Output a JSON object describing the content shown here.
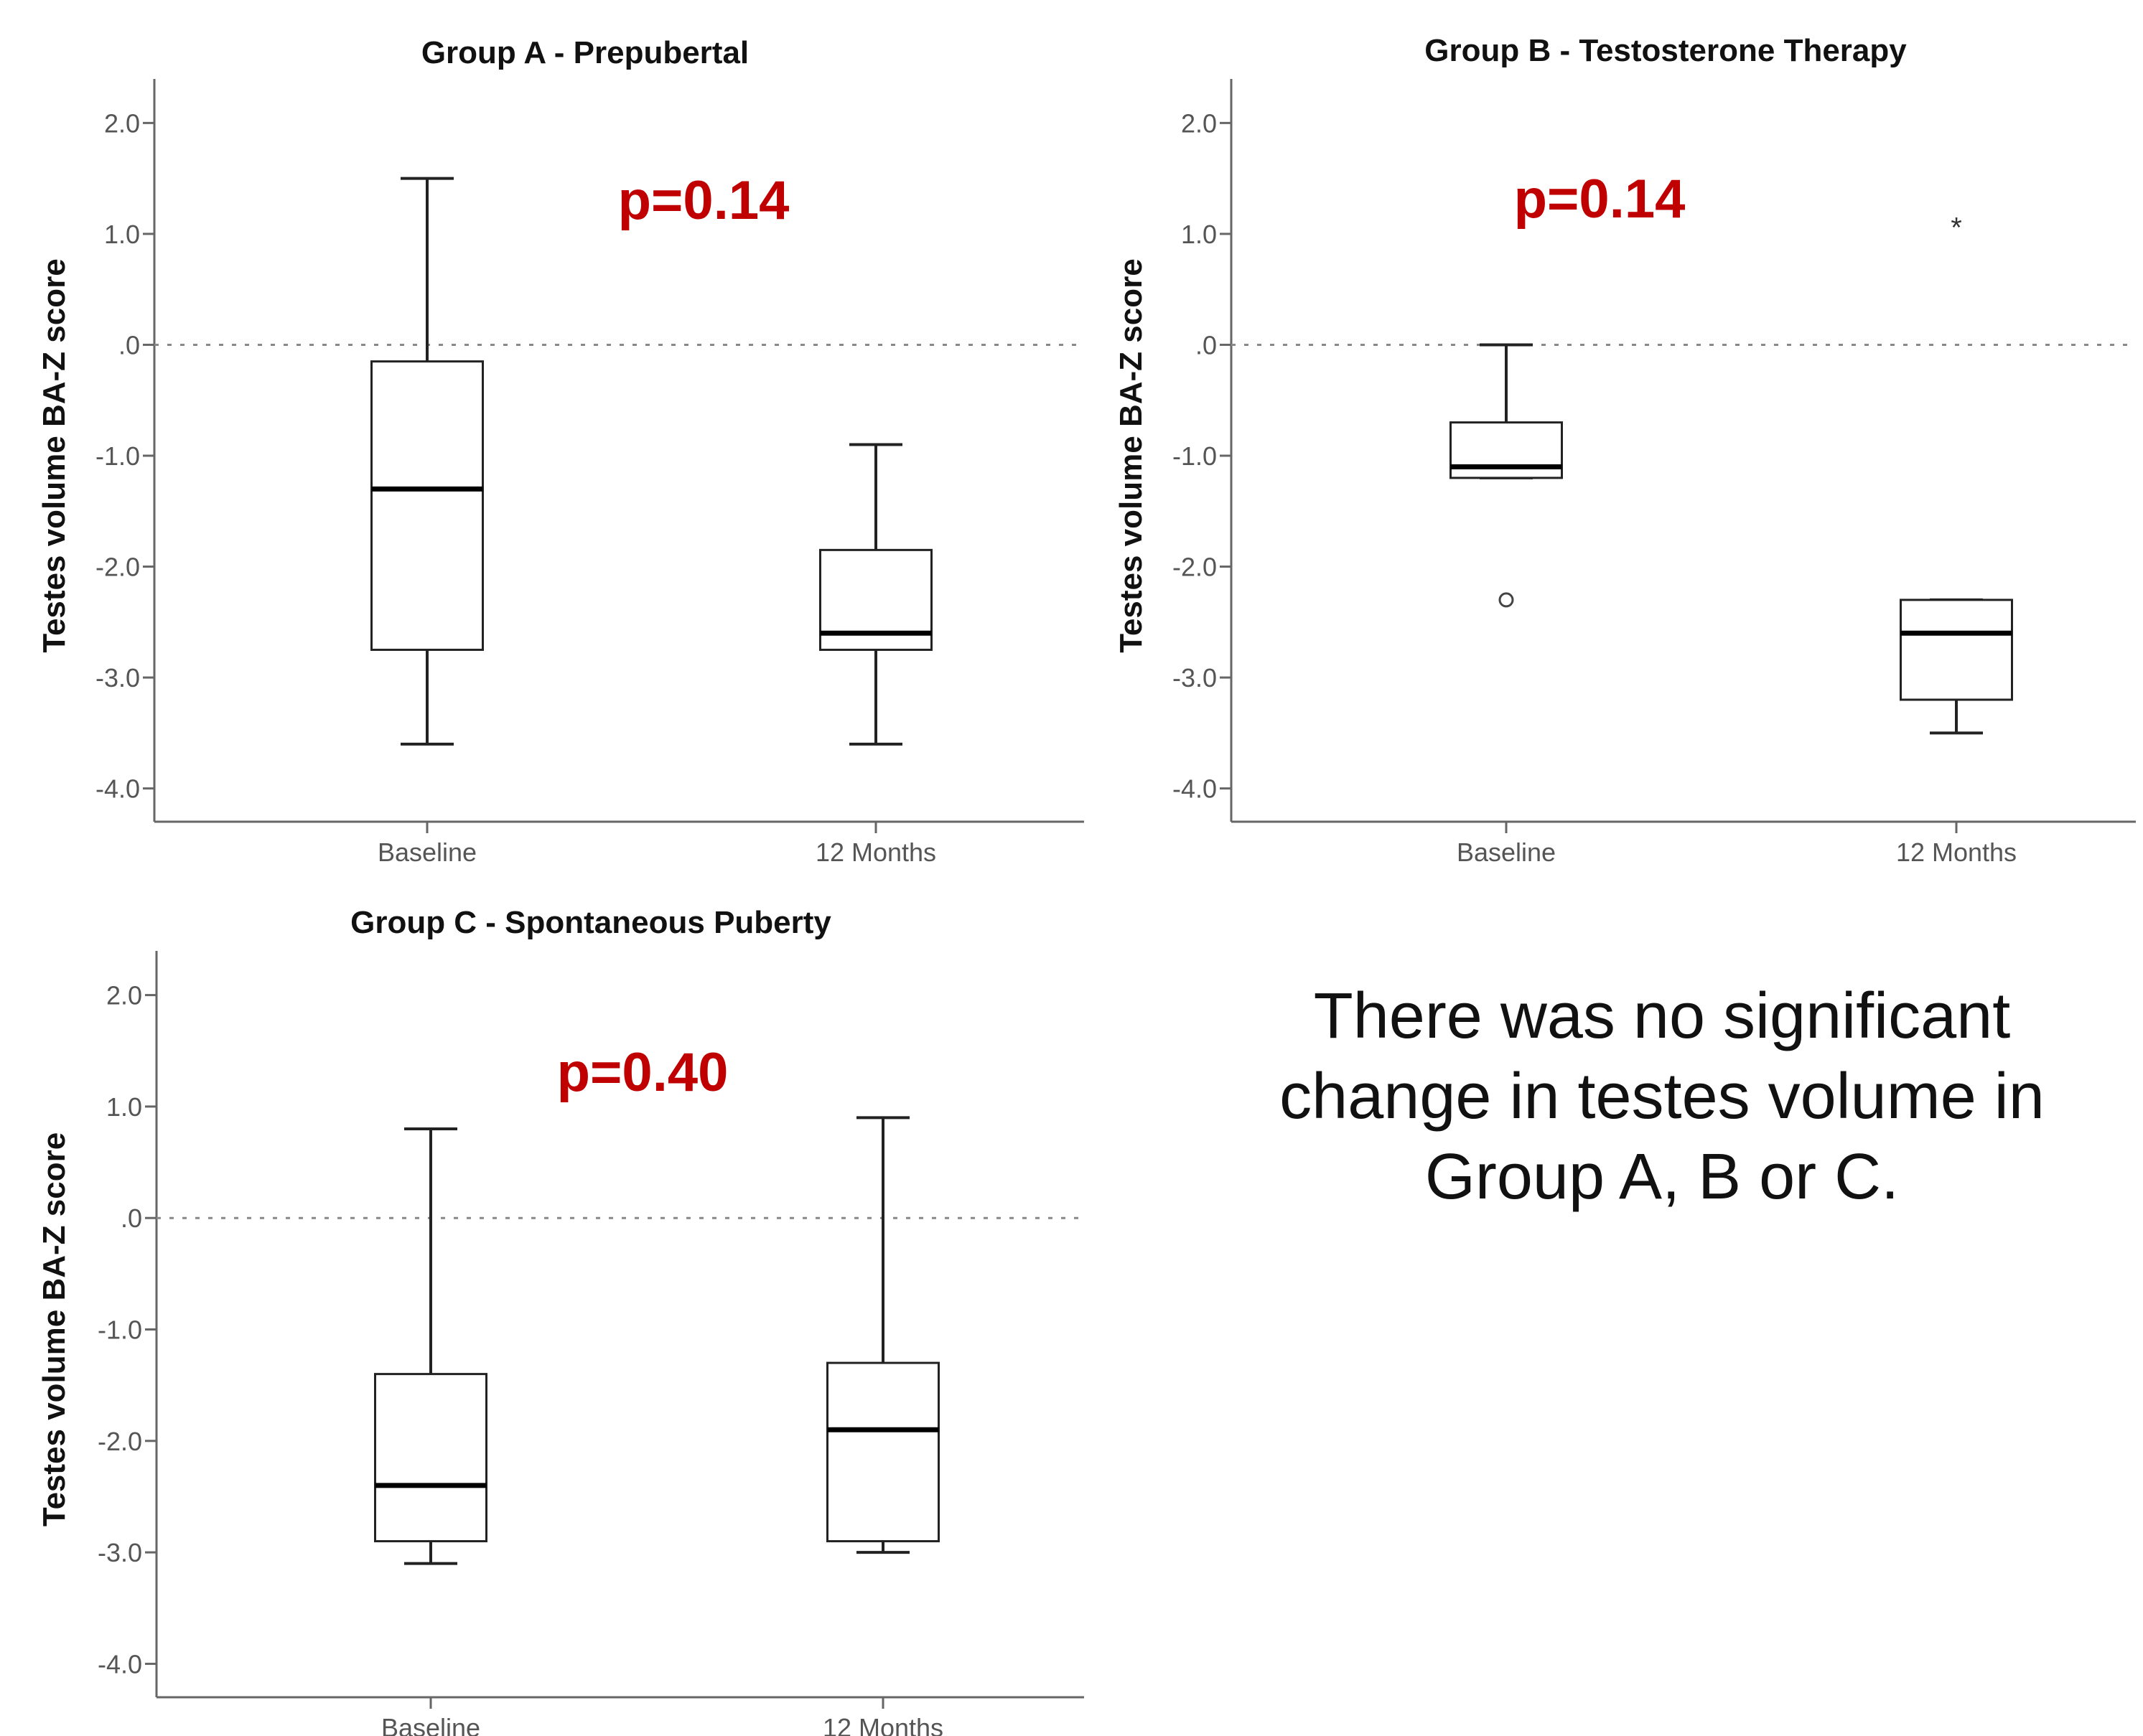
{
  "chart_data": [
    {
      "type": "box",
      "title": "Group A - Prepubertal",
      "ylabel": "Testes volume BA-Z score",
      "ylim": [
        -4.3,
        2.3
      ],
      "yticks": [
        {
          "value": 2.0,
          "label": "2.0"
        },
        {
          "value": 1.0,
          "label": "1.0"
        },
        {
          "value": 0.0,
          "label": ".0"
        },
        {
          "value": -1.0,
          "label": "-1.0"
        },
        {
          "value": -2.0,
          "label": "-2.0"
        },
        {
          "value": -3.0,
          "label": "-3.0"
        },
        {
          "value": -4.0,
          "label": "-4.0"
        }
      ],
      "reference_line": 0.0,
      "categories": [
        "Baseline",
        "12 Months"
      ],
      "boxes": [
        {
          "category": "Baseline",
          "whisker_low": -3.6,
          "q1": -2.75,
          "median": -1.3,
          "q3": -0.15,
          "whisker_high": 1.5,
          "outliers": [],
          "extremes": []
        },
        {
          "category": "12 Months",
          "whisker_low": -3.6,
          "q1": -2.75,
          "median": -2.6,
          "q3": -1.85,
          "whisker_high": -0.9,
          "outliers": [],
          "extremes": []
        }
      ],
      "annotation": "p=0.14"
    },
    {
      "type": "box",
      "title": "Group B - Testosterone Therapy",
      "ylabel": "Testes volume BA-Z score",
      "ylim": [
        -4.3,
        2.3
      ],
      "yticks": [
        {
          "value": 2.0,
          "label": "2.0"
        },
        {
          "value": 1.0,
          "label": "1.0"
        },
        {
          "value": 0.0,
          "label": ".0"
        },
        {
          "value": -1.0,
          "label": "-1.0"
        },
        {
          "value": -2.0,
          "label": "-2.0"
        },
        {
          "value": -3.0,
          "label": "-3.0"
        },
        {
          "value": -4.0,
          "label": "-4.0"
        }
      ],
      "reference_line": 0.0,
      "categories": [
        "Baseline",
        "12 Months"
      ],
      "boxes": [
        {
          "category": "Baseline",
          "whisker_low": -1.2,
          "q1": -1.2,
          "median": -1.1,
          "q3": -0.7,
          "whisker_high": 0.0,
          "outliers": [
            -2.3
          ],
          "extremes": []
        },
        {
          "category": "12 Months",
          "whisker_low": -3.5,
          "q1": -3.2,
          "median": -2.6,
          "q3": -2.3,
          "whisker_high": -2.3,
          "outliers": [],
          "extremes": [
            1.1
          ]
        }
      ],
      "annotation": "p=0.14"
    },
    {
      "type": "box",
      "title": "Group C - Spontaneous Puberty",
      "ylabel": "Testes volume BA-Z score",
      "ylim": [
        -4.3,
        2.3
      ],
      "yticks": [
        {
          "value": 2.0,
          "label": "2.0"
        },
        {
          "value": 1.0,
          "label": "1.0"
        },
        {
          "value": 0.0,
          "label": ".0"
        },
        {
          "value": -1.0,
          "label": "-1.0"
        },
        {
          "value": -2.0,
          "label": "-2.0"
        },
        {
          "value": -3.0,
          "label": "-3.0"
        },
        {
          "value": -4.0,
          "label": "-4.0"
        }
      ],
      "reference_line": 0.0,
      "categories": [
        "Baseline",
        "12 Months"
      ],
      "boxes": [
        {
          "category": "Baseline",
          "whisker_low": -3.1,
          "q1": -2.9,
          "median": -2.4,
          "q3": -1.4,
          "whisker_high": 0.8,
          "outliers": [],
          "extremes": []
        },
        {
          "category": "12 Months",
          "whisker_low": -3.0,
          "q1": -2.9,
          "median": -1.9,
          "q3": -1.3,
          "whisker_high": 0.9,
          "outliers": [],
          "extremes": []
        }
      ],
      "annotation": "p=0.40"
    }
  ],
  "summary_text": "There was no significant change in testes volume in Group A, B or C.",
  "colors": {
    "box_stroke": "#222222",
    "axis": "#666666",
    "reference_line": "#888888",
    "annotation": "#c00000"
  }
}
